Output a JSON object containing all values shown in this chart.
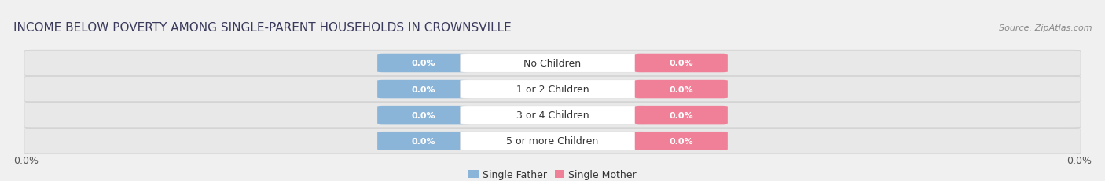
{
  "title": "INCOME BELOW POVERTY AMONG SINGLE-PARENT HOUSEHOLDS IN CROWNSVILLE",
  "source": "Source: ZipAtlas.com",
  "categories": [
    "No Children",
    "1 or 2 Children",
    "3 or 4 Children",
    "5 or more Children"
  ],
  "single_father_values": [
    0.0,
    0.0,
    0.0,
    0.0
  ],
  "single_mother_values": [
    0.0,
    0.0,
    0.0,
    0.0
  ],
  "father_color": "#8ab4d8",
  "mother_color": "#f08098",
  "row_bg_color": "#e4e4e4",
  "row_border_color": "#cccccc",
  "title_color": "#3a3a5c",
  "source_color": "#888888",
  "label_color": "#333333",
  "value_color": "#ffffff",
  "axis_tick_color": "#555555",
  "bg_color": "#f0f0f0",
  "title_fontsize": 11,
  "source_fontsize": 8,
  "cat_fontsize": 9,
  "val_fontsize": 8,
  "legend_fontsize": 9,
  "tick_fontsize": 9,
  "axis_label_left": "0.0%",
  "axis_label_right": "0.0%",
  "figure_width": 14.06,
  "figure_height": 2.32,
  "dpi": 100
}
